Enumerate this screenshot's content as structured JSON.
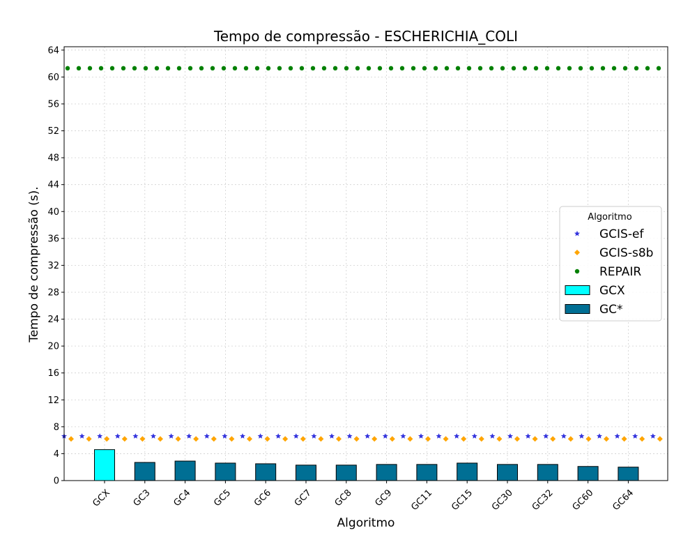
{
  "chart_data": {
    "type": "bar",
    "title": "Tempo de compressão -  ESCHERICHIA_COLI",
    "xlabel": "Algoritmo",
    "ylabel": "Tempo de compressão (s).",
    "ylim": [
      0,
      64.5
    ],
    "yticks": [
      0,
      4,
      8,
      12,
      16,
      20,
      24,
      28,
      32,
      36,
      40,
      44,
      48,
      52,
      56,
      60,
      64
    ],
    "grid": true,
    "categories": [
      "GCX",
      "GC3",
      "GC4",
      "GC5",
      "GC6",
      "GC7",
      "GC8",
      "GC9",
      "GC11",
      "GC15",
      "GC30",
      "GC32",
      "GC60",
      "GC64"
    ],
    "series": [
      {
        "name": "GCX",
        "kind": "bar",
        "color": "#00ffff",
        "values": [
          4.6,
          null,
          null,
          null,
          null,
          null,
          null,
          null,
          null,
          null,
          null,
          null,
          null,
          null
        ]
      },
      {
        "name": "GC*",
        "kind": "bar",
        "color": "#006f94",
        "values": [
          null,
          2.7,
          2.9,
          2.6,
          2.5,
          2.3,
          2.3,
          2.4,
          2.4,
          2.6,
          2.4,
          2.4,
          2.1,
          2.0
        ]
      }
    ],
    "reference_lines": [
      {
        "name": "GCIS-ef",
        "marker": "star",
        "color": "#3333dd",
        "value": 6.6
      },
      {
        "name": "GCIS-s8b",
        "marker": "diamond",
        "color": "#ffa500",
        "value": 6.2
      },
      {
        "name": "REPAIR",
        "marker": "circle",
        "color": "#008000",
        "value": 61.3
      }
    ],
    "legend": {
      "title": "Algoritmo",
      "position": "center-right",
      "entries": [
        "GCIS-ef",
        "GCIS-s8b",
        "REPAIR",
        "GCX",
        "GC*"
      ]
    }
  }
}
